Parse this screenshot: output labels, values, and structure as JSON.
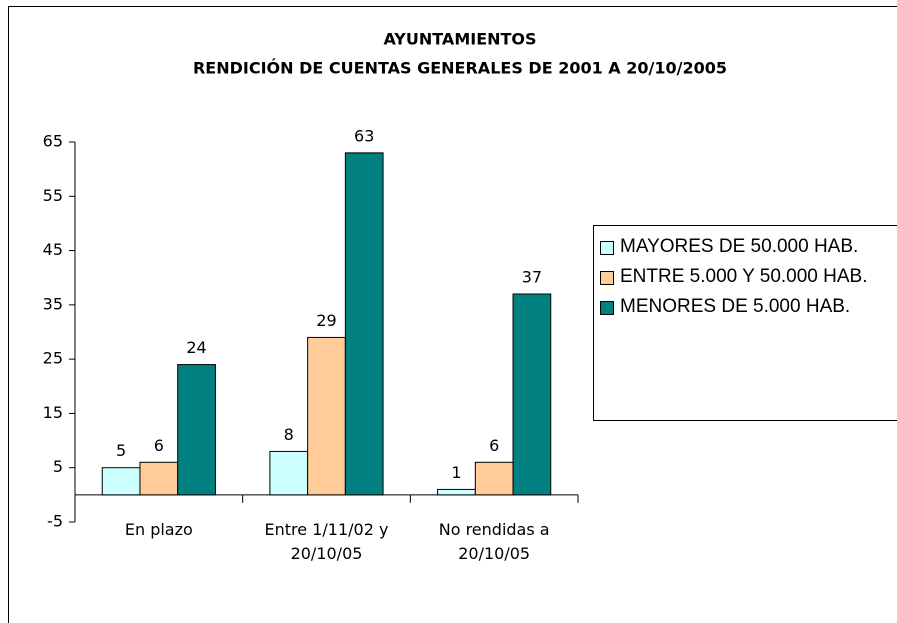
{
  "chart_data": {
    "type": "bar",
    "title": "AYUNTAMIENTOS",
    "subtitle": "RENDICIÓN DE CUENTAS GENERALES DE 2001 A 20/10/2005",
    "categories": [
      "En plazo",
      "Entre 1/11/02 y 20/10/05",
      "No rendidas a 20/10/05"
    ],
    "series": [
      {
        "name": "MAYORES DE 50.000 HAB.",
        "color": "#ccffff",
        "values": [
          5,
          8,
          1
        ]
      },
      {
        "name": "ENTRE 5.000 Y 50.000 HAB.",
        "color": "#ffcc99",
        "values": [
          6,
          29,
          6
        ]
      },
      {
        "name": "MENORES DE 5.000 HAB.",
        "color": "#008080",
        "values": [
          24,
          63,
          37
        ]
      }
    ],
    "ylim": [
      -5,
      65
    ],
    "yticks": [
      -5,
      5,
      15,
      25,
      35,
      45,
      55,
      65
    ],
    "legend": "right"
  }
}
